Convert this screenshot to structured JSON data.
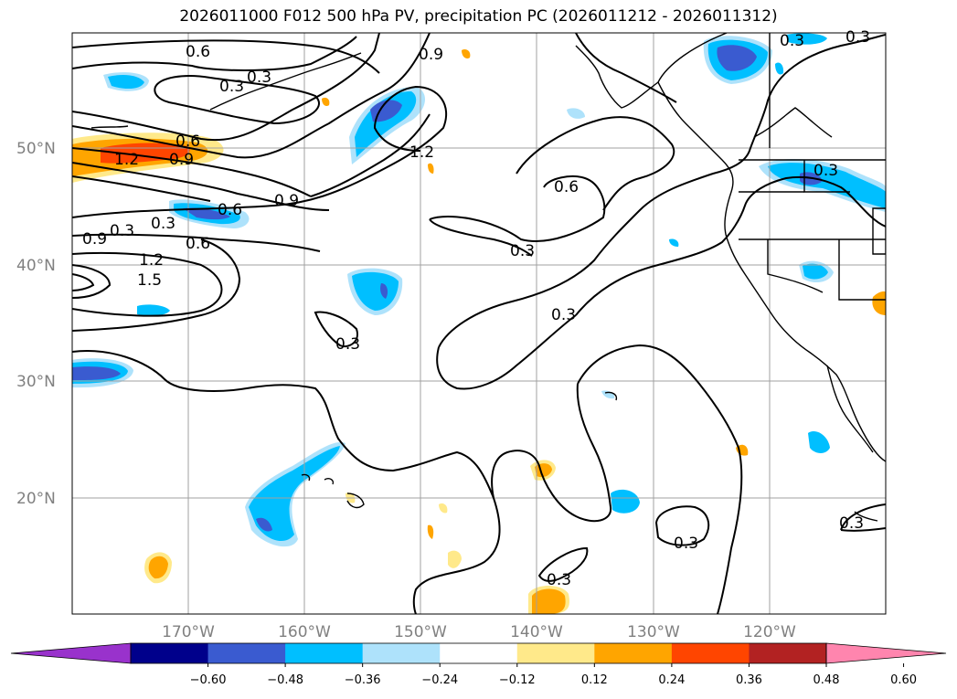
{
  "figure": {
    "title": "2026011000 F012 500 hPa PV, precipitation PC (2026011212 - 2026011312)"
  },
  "map": {
    "lat_labels": [
      "50°N",
      "40°N",
      "30°N",
      "20°N"
    ],
    "lon_labels": [
      "170°W",
      "160°W",
      "150°W",
      "140°W",
      "130°W",
      "120°W"
    ],
    "gridlines": true,
    "contour_labels": [
      "0.6",
      "0.3",
      "0.9",
      "0.3",
      "0.6",
      "1.2",
      "0.6",
      "0.9",
      "0.3",
      "0.9",
      "0.6",
      "0.9",
      "1.2",
      "1.5",
      "0.3",
      "0.6",
      "0.3",
      "0.3",
      "1.2",
      "0.3",
      "0.3",
      "0.3",
      "0.3",
      "0.3",
      "0.3",
      "0.3"
    ]
  },
  "colorbar": {
    "ticks": [
      "−0.60",
      "−0.48",
      "−0.36",
      "−0.24",
      "−0.12",
      "0.12",
      "0.24",
      "0.36",
      "0.48",
      "0.60"
    ],
    "colors": [
      "#9932cc",
      "#00008b",
      "#3a5bd0",
      "#00bfff",
      "#aee2fb",
      "#ffffff",
      "#ffe98a",
      "#ffa500",
      "#ff4500",
      "#b22222",
      "#ff85ae"
    ]
  },
  "chart_data": {
    "type": "contour_map",
    "variable": "500 hPa PV, precipitation PC",
    "contour_levels": [
      0.3,
      0.6,
      0.9,
      1.2,
      1.5
    ],
    "fill_levels": [
      -0.6,
      -0.48,
      -0.36,
      -0.24,
      -0.12,
      0.12,
      0.24,
      0.36,
      0.48,
      0.6
    ],
    "lon_range": [
      -180,
      -110
    ],
    "lat_range": [
      10,
      60
    ]
  }
}
